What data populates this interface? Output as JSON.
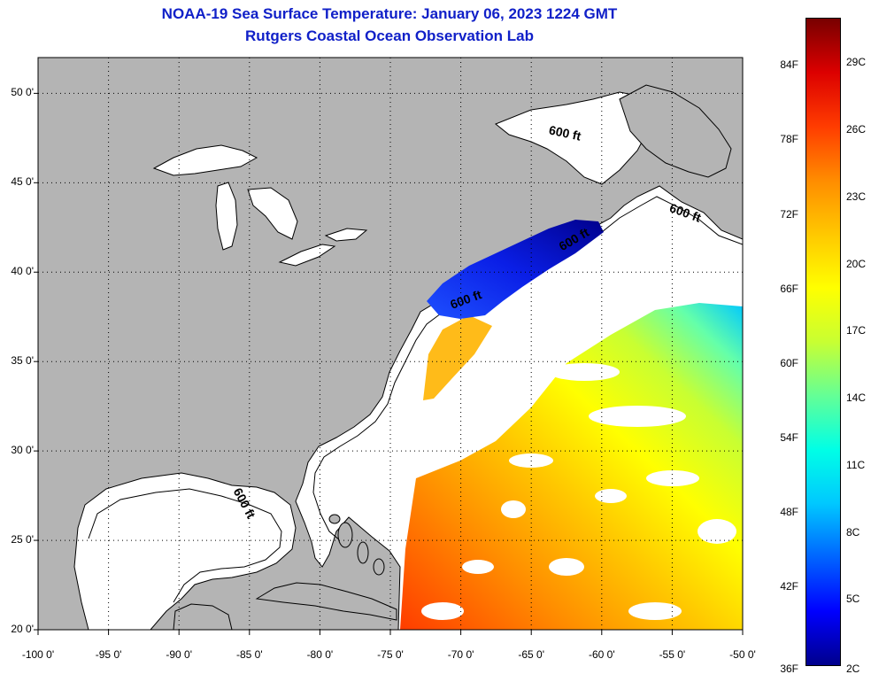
{
  "header": {
    "title": "NOAA-19 Sea Surface Temperature:  January 06, 2023 1224 GMT",
    "subtitle": "Rutgers Coastal Ocean Observation Lab"
  },
  "map": {
    "lon_range": [
      -100,
      -50
    ],
    "lat_range": [
      20,
      52
    ],
    "lon_ticks": [
      {
        "value": -100,
        "label": "-100 0'"
      },
      {
        "value": -95,
        "label": "-95 0'"
      },
      {
        "value": -90,
        "label": "-90 0'"
      },
      {
        "value": -85,
        "label": "-85 0'"
      },
      {
        "value": -80,
        "label": "-80 0'"
      },
      {
        "value": -75,
        "label": "-75 0'"
      },
      {
        "value": -70,
        "label": "-70 0'"
      },
      {
        "value": -65,
        "label": "-65 0'"
      },
      {
        "value": -60,
        "label": "-60 0'"
      },
      {
        "value": -55,
        "label": "-55 0'"
      },
      {
        "value": -50,
        "label": "-50 0'"
      }
    ],
    "lat_ticks": [
      {
        "value": 50,
        "label": "50 0'"
      },
      {
        "value": 45,
        "label": "45 0'"
      },
      {
        "value": 40,
        "label": "40 0'"
      },
      {
        "value": 35,
        "label": "35 0'"
      },
      {
        "value": 30,
        "label": "30 0'"
      },
      {
        "value": 25,
        "label": "25 0'"
      },
      {
        "value": 20,
        "label": "20 0'"
      }
    ],
    "depth_labels": [
      "600 ft",
      "600 ft",
      "600 ft",
      "600 ft",
      "600 ft"
    ],
    "grid": "dotted",
    "colors": {
      "land": "#b4b4b4",
      "no_data": "#ffffff",
      "coast": "#000000"
    }
  },
  "colorbar": {
    "range_c": [
      2,
      31
    ],
    "fahrenheit": [
      {
        "value": 36,
        "label": "36F"
      },
      {
        "value": 42,
        "label": "42F"
      },
      {
        "value": 48,
        "label": "48F"
      },
      {
        "value": 54,
        "label": "54F"
      },
      {
        "value": 60,
        "label": "60F"
      },
      {
        "value": 66,
        "label": "66F"
      },
      {
        "value": 72,
        "label": "72F"
      },
      {
        "value": 78,
        "label": "78F"
      },
      {
        "value": 84,
        "label": "84F"
      }
    ],
    "celsius": [
      {
        "value": 2,
        "label": "2C"
      },
      {
        "value": 5,
        "label": "5C"
      },
      {
        "value": 8,
        "label": "8C"
      },
      {
        "value": 11,
        "label": "11C"
      },
      {
        "value": 14,
        "label": "14C"
      },
      {
        "value": 17,
        "label": "17C"
      },
      {
        "value": 20,
        "label": "20C"
      },
      {
        "value": 23,
        "label": "23C"
      },
      {
        "value": 26,
        "label": "26C"
      },
      {
        "value": 29,
        "label": "29C"
      }
    ],
    "colors": [
      "#00008c",
      "#0000ff",
      "#0064ff",
      "#00c8ff",
      "#00ffe6",
      "#64ff96",
      "#c8ff32",
      "#ffff00",
      "#ffc800",
      "#ff8c00",
      "#ff3c00",
      "#dc0000",
      "#780000"
    ]
  }
}
